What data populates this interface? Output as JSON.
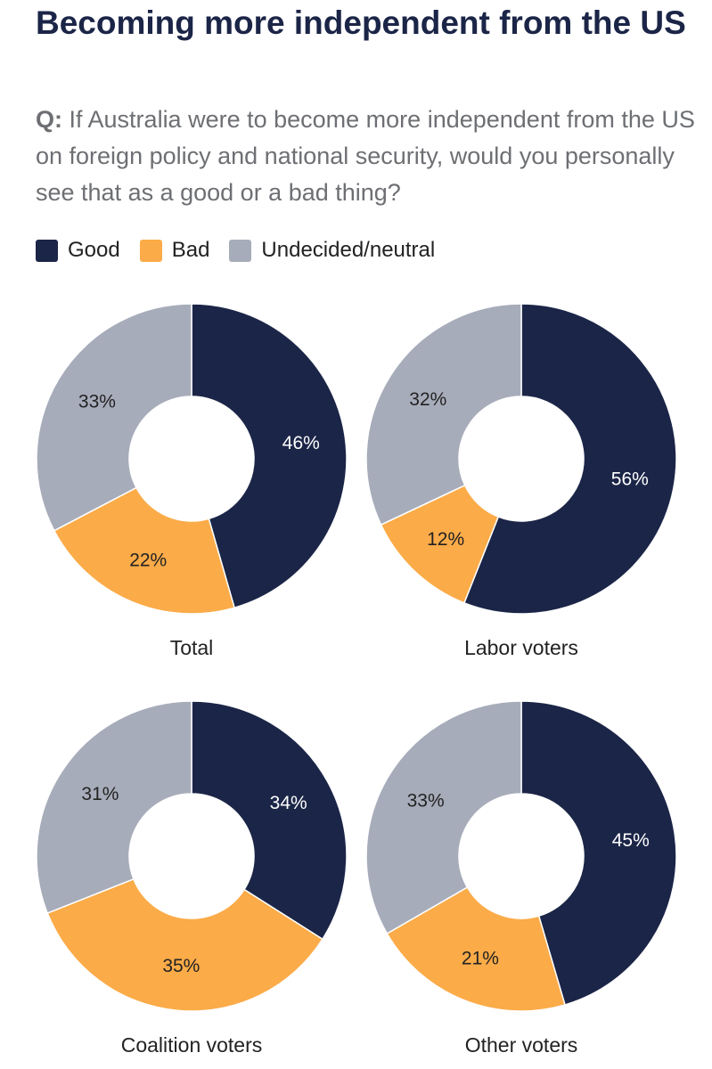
{
  "header": {
    "title": "Becoming more independent from the US",
    "question_prefix": "Q:",
    "question": "If Australia were to become more independent from the US on foreign policy and national security, would you personally see that as a good or a bad thing?"
  },
  "colors": {
    "good": "#1b2547",
    "bad": "#fbab48",
    "neutral": "#a7acba",
    "title": "#1b2547",
    "question": "#6d6f73"
  },
  "legend": [
    {
      "label": "Good",
      "color": "#1b2547"
    },
    {
      "label": "Bad",
      "color": "#fbab48"
    },
    {
      "label": "Undecided/neutral",
      "color": "#a7acba"
    }
  ],
  "chart_data": {
    "type": "pie",
    "style": "donut",
    "categories": [
      "Good",
      "Bad",
      "Undecided/neutral"
    ],
    "legend_position": "top-left",
    "charts": [
      {
        "name": "Total",
        "values": [
          46,
          22,
          33
        ],
        "labels": [
          "46%",
          "22%",
          "33%"
        ]
      },
      {
        "name": "Labor voters",
        "values": [
          56,
          12,
          32
        ],
        "labels": [
          "56%",
          "12%",
          "32%"
        ]
      },
      {
        "name": "Coalition voters",
        "values": [
          34,
          35,
          31
        ],
        "labels": [
          "34%",
          "35%",
          "31%"
        ]
      },
      {
        "name": "Other voters",
        "values": [
          45,
          21,
          33
        ],
        "labels": [
          "45%",
          "21%",
          "33%"
        ]
      }
    ]
  }
}
